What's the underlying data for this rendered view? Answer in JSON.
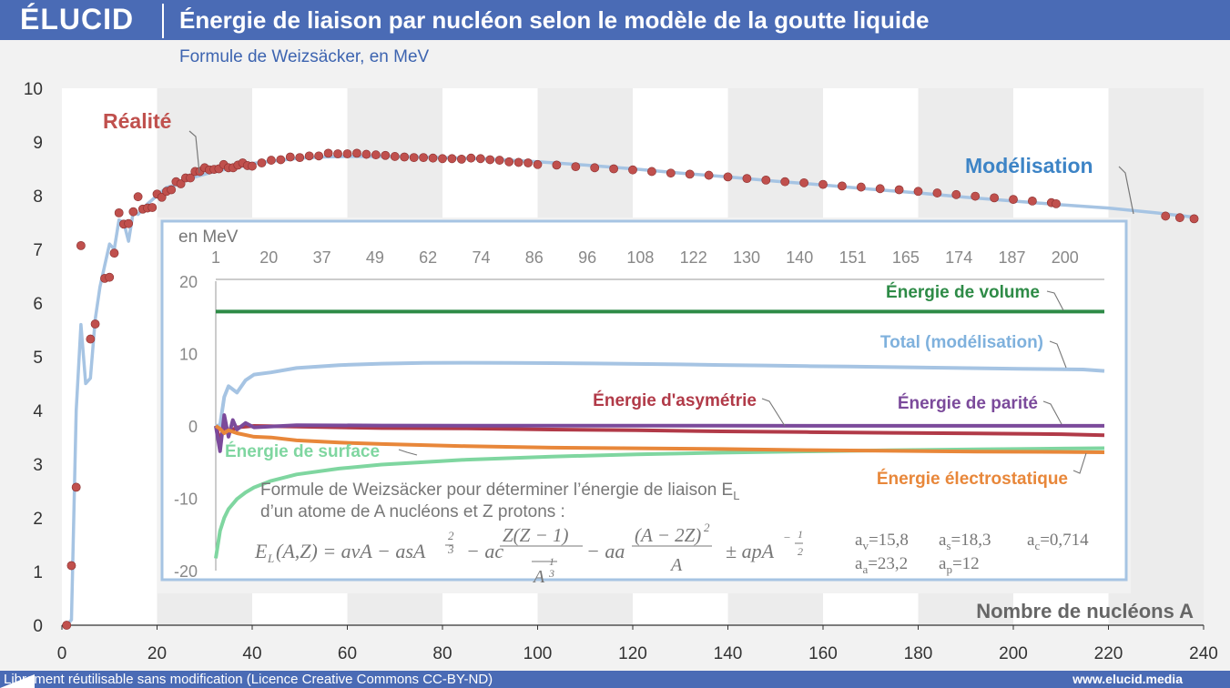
{
  "header": {
    "logo": "ÉLUCID",
    "title": "Énergie de liaison par nucléon selon le modèle de la goutte liquide",
    "subtitle": "Formule de Weizsäcker, en MeV"
  },
  "footer": {
    "license": "Librement réutilisable sans modification (Licence Creative Commons CC-BY-ND)",
    "site": "www.elucid.media"
  },
  "colors": {
    "header": "#4a6bb5",
    "reality": "#c0504d",
    "model": "#a6c4e3",
    "volume": "#2e8b47",
    "surface": "#7fd6a0",
    "electrostatic": "#e8873a",
    "asymmetry": "#b13a48",
    "parity": "#7b4a9b"
  },
  "chart_data": [
    {
      "type": "scatter",
      "title": "Énergie de liaison par nucléon selon le modèle de la goutte liquide",
      "subtitle": "Formule de Weizsäcker, en MeV",
      "xlabel": "Nombre de nucléons A",
      "xlim": [
        0,
        240
      ],
      "ylim": [
        0,
        10
      ],
      "xticks": [
        0,
        20,
        40,
        60,
        80,
        100,
        120,
        140,
        160,
        180,
        200,
        220,
        240
      ],
      "yticks": [
        0,
        1,
        2,
        3,
        4,
        5,
        6,
        7,
        8,
        9,
        10
      ],
      "grid": "alternating vertical bands",
      "series": [
        {
          "name": "Réalité",
          "kind": "points",
          "x": [
            1,
            2,
            3,
            4,
            6,
            7,
            9,
            10,
            11,
            12,
            13,
            14,
            15,
            16,
            17,
            18,
            19,
            20,
            21,
            22,
            23,
            24,
            25,
            26,
            27,
            28,
            29,
            30,
            31,
            32,
            33,
            34,
            35,
            36,
            37,
            38,
            39,
            40,
            42,
            44,
            46,
            48,
            50,
            52,
            54,
            56,
            58,
            60,
            62,
            64,
            66,
            68,
            70,
            72,
            74,
            76,
            78,
            80,
            82,
            84,
            86,
            88,
            90,
            92,
            94,
            96,
            98,
            100,
            104,
            108,
            112,
            116,
            120,
            124,
            128,
            132,
            136,
            140,
            144,
            148,
            152,
            156,
            160,
            164,
            168,
            172,
            176,
            180,
            184,
            188,
            192,
            196,
            200,
            204,
            208,
            209,
            232,
            235,
            238
          ],
          "y": [
            0.0,
            1.11,
            2.57,
            7.07,
            5.33,
            5.61,
            6.46,
            6.48,
            6.93,
            7.68,
            7.47,
            7.48,
            7.7,
            7.98,
            7.75,
            7.77,
            7.78,
            8.03,
            7.97,
            8.08,
            8.11,
            8.26,
            8.22,
            8.33,
            8.33,
            8.45,
            8.45,
            8.52,
            8.48,
            8.49,
            8.5,
            8.58,
            8.52,
            8.52,
            8.57,
            8.61,
            8.56,
            8.55,
            8.61,
            8.66,
            8.67,
            8.72,
            8.71,
            8.74,
            8.74,
            8.79,
            8.78,
            8.78,
            8.79,
            8.77,
            8.76,
            8.75,
            8.73,
            8.72,
            8.71,
            8.71,
            8.7,
            8.69,
            8.69,
            8.68,
            8.7,
            8.69,
            8.67,
            8.66,
            8.63,
            8.62,
            8.61,
            8.58,
            8.57,
            8.54,
            8.52,
            8.5,
            8.48,
            8.45,
            8.42,
            8.4,
            8.38,
            8.35,
            8.32,
            8.29,
            8.26,
            8.24,
            8.21,
            8.18,
            8.16,
            8.13,
            8.11,
            8.08,
            8.05,
            8.02,
            7.99,
            7.96,
            7.93,
            7.9,
            7.87,
            7.85,
            7.62,
            7.59,
            7.57
          ]
        },
        {
          "name": "Modélisation",
          "kind": "line",
          "x": [
            1,
            2,
            3,
            4,
            5,
            6,
            7,
            8,
            9,
            10,
            11,
            12,
            13,
            14,
            15,
            16,
            18,
            20,
            22,
            24,
            26,
            28,
            30,
            32,
            35,
            38,
            40,
            45,
            50,
            55,
            60,
            70,
            80,
            90,
            100,
            110,
            120,
            130,
            140,
            150,
            160,
            170,
            180,
            190,
            200,
            210,
            220,
            230,
            238
          ],
          "y": [
            0.0,
            0.1,
            4.0,
            5.6,
            4.5,
            4.6,
            5.7,
            6.3,
            6.7,
            7.1,
            7.0,
            7.55,
            7.5,
            7.15,
            7.7,
            7.65,
            7.85,
            8.0,
            8.15,
            8.2,
            8.3,
            8.35,
            8.4,
            8.45,
            8.5,
            8.55,
            8.6,
            8.65,
            8.7,
            8.72,
            8.73,
            8.73,
            8.71,
            8.68,
            8.63,
            8.57,
            8.5,
            8.42,
            8.35,
            8.27,
            8.2,
            8.12,
            8.05,
            7.97,
            7.9,
            7.83,
            7.77,
            7.68,
            7.6
          ]
        }
      ],
      "annotations": [
        {
          "text": "Réalité",
          "series": "Réalité"
        },
        {
          "text": "Modélisation",
          "series": "Modélisation"
        }
      ]
    },
    {
      "type": "line",
      "title": "",
      "unit_label": "en MeV",
      "ylim": [
        -20,
        20
      ],
      "yticks": [
        -20,
        -10,
        0,
        10,
        20
      ],
      "xticks": [
        1,
        20,
        37,
        49,
        62,
        74,
        86,
        96,
        108,
        122,
        130,
        140,
        151,
        165,
        174,
        187,
        200
      ],
      "xaxis_position": "top",
      "series": [
        {
          "name": "Énergie de volume",
          "color": "#2e8b47",
          "x": [
            1,
            210
          ],
          "y": [
            15.8,
            15.8
          ]
        },
        {
          "name": "Total (modélisation)",
          "color": "#a6c4e3",
          "x": [
            1,
            2,
            3,
            4,
            6,
            8,
            10,
            14,
            20,
            30,
            40,
            50,
            60,
            70,
            80,
            90,
            100,
            110,
            120,
            130,
            140,
            150,
            160,
            170,
            180,
            190,
            200,
            205,
            210
          ],
          "y": [
            0,
            0.1,
            4.0,
            5.5,
            4.6,
            6.3,
            7.1,
            7.4,
            8.0,
            8.4,
            8.6,
            8.7,
            8.73,
            8.71,
            8.68,
            8.63,
            8.57,
            8.5,
            8.42,
            8.35,
            8.27,
            8.2,
            8.12,
            8.05,
            7.97,
            7.9,
            7.83,
            7.8,
            7.6
          ]
        },
        {
          "name": "Énergie d'asymétrie",
          "color": "#b13a48",
          "x": [
            1,
            2,
            3,
            4,
            6,
            10,
            20,
            40,
            60,
            80,
            100,
            120,
            140,
            160,
            180,
            200,
            210
          ],
          "y": [
            0,
            -2.0,
            0.0,
            -0.8,
            -0.2,
            0,
            -0.1,
            -0.3,
            -0.35,
            -0.5,
            -0.6,
            -0.75,
            -0.85,
            -0.95,
            -1.05,
            -1.15,
            -1.3
          ]
        },
        {
          "name": "Énergie de parité",
          "color": "#7b4a9b",
          "x": [
            1,
            2,
            3,
            4,
            5,
            6,
            8,
            10,
            20,
            40,
            80,
            120,
            160,
            210
          ],
          "y": [
            0,
            -3.5,
            1.5,
            -1.5,
            0.8,
            -0.5,
            0.4,
            -0.2,
            0.1,
            0.05,
            0.02,
            0.02,
            0.01,
            0.01
          ]
        },
        {
          "name": "Énergie de surface",
          "color": "#7fd6a0",
          "x": [
            1,
            2,
            3,
            4,
            6,
            8,
            10,
            14,
            20,
            30,
            40,
            60,
            80,
            100,
            120,
            140,
            160,
            180,
            200,
            210
          ],
          "y": [
            -18.3,
            -14.5,
            -12.7,
            -11.5,
            -10.1,
            -9.2,
            -8.5,
            -7.6,
            -6.7,
            -5.9,
            -5.35,
            -4.67,
            -4.24,
            -3.94,
            -3.7,
            -3.52,
            -3.37,
            -3.24,
            -3.13,
            -3.08
          ]
        },
        {
          "name": "Énergie électrostatique",
          "color": "#e8873a",
          "x": [
            1,
            2,
            3,
            4,
            6,
            10,
            14,
            20,
            30,
            40,
            60,
            80,
            100,
            120,
            140,
            160,
            180,
            200,
            210
          ],
          "y": [
            0,
            -0.4,
            -1.0,
            -0.6,
            -1.0,
            -1.5,
            -1.6,
            -2.0,
            -2.3,
            -2.5,
            -2.8,
            -3.0,
            -3.1,
            -3.2,
            -3.35,
            -3.45,
            -3.55,
            -3.6,
            -3.65
          ]
        }
      ],
      "formula_text": "Formule de Weizsäcker pour déterminer l’énergie de liaison E",
      "formula_text_sub": "L",
      "formula_text2": "d’un atome de A nucléons et Z protons :",
      "params": [
        {
          "name": "a",
          "sub": "v",
          "value": "=15,8"
        },
        {
          "name": "a",
          "sub": "s",
          "value": "=18,3"
        },
        {
          "name": "a",
          "sub": "c",
          "value": "=0,714"
        },
        {
          "name": "a",
          "sub": "a",
          "value": "=23,2"
        },
        {
          "name": "a",
          "sub": "p",
          "value": "=12"
        }
      ]
    }
  ]
}
